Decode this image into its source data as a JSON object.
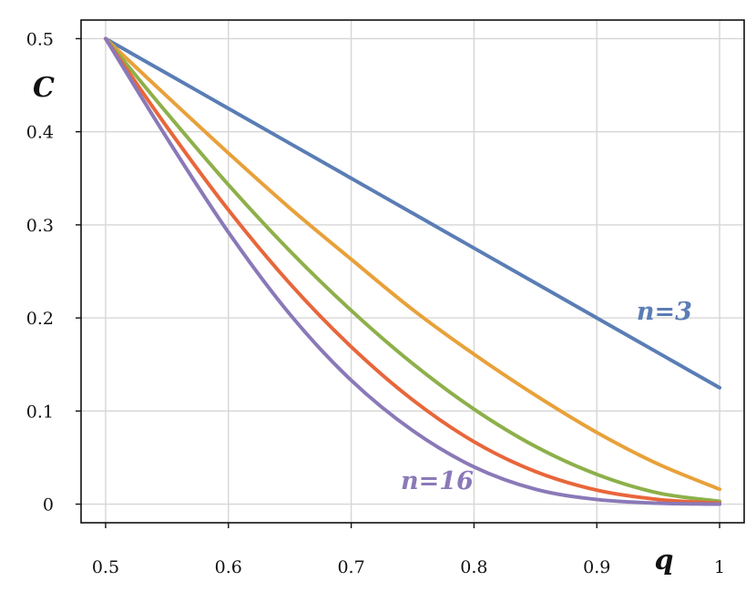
{
  "chart_data": {
    "type": "line",
    "title": "",
    "xlabel": "q",
    "ylabel": "C",
    "xlim": [
      0.48,
      1.02
    ],
    "ylim": [
      -0.02,
      0.52
    ],
    "grid": true,
    "x_ticks": [
      0.5,
      0.6,
      0.7,
      0.8,
      0.9,
      1
    ],
    "x_tick_labels": [
      "0.5",
      "0.6",
      "0.7",
      "0.8",
      "0.9",
      "1"
    ],
    "y_ticks": [
      0,
      0.1,
      0.2,
      0.3,
      0.4,
      0.5
    ],
    "y_tick_labels": [
      "0",
      "0.1",
      "0.2",
      "0.3",
      "0.4",
      "0.5"
    ],
    "x": [
      0.5,
      0.55,
      0.6,
      0.65,
      0.7,
      0.75,
      0.8,
      0.85,
      0.9,
      0.95,
      1.0
    ],
    "series": [
      {
        "color": "#5a7db5",
        "values": [
          0.5,
          0.4625,
          0.425,
          0.3875,
          0.35,
          0.3125,
          0.275,
          0.2375,
          0.2,
          0.1625,
          0.125
        ]
      },
      {
        "color": "#e8a13a",
        "values": [
          0.5,
          0.438,
          0.377,
          0.318,
          0.263,
          0.209,
          0.161,
          0.117,
          0.077,
          0.043,
          0.016
        ]
      },
      {
        "color": "#8db04a",
        "values": [
          0.5,
          0.42,
          0.343,
          0.272,
          0.208,
          0.151,
          0.102,
          0.062,
          0.032,
          0.012,
          0.003
        ]
      },
      {
        "color": "#e8663b",
        "values": [
          0.5,
          0.405,
          0.316,
          0.237,
          0.169,
          0.112,
          0.067,
          0.035,
          0.015,
          0.005,
          0.001
        ]
      },
      {
        "color": "#8a79b8",
        "values": [
          0.5,
          0.393,
          0.292,
          0.204,
          0.133,
          0.079,
          0.04,
          0.016,
          0.005,
          0.001,
          0.0
        ]
      }
    ],
    "annotations": [
      {
        "text": "n=3",
        "x": 0.955,
        "y": 0.198,
        "color": "#5a7db5"
      },
      {
        "text": "n=16",
        "x": 0.77,
        "y": 0.016,
        "color": "#8a79b8"
      }
    ]
  }
}
